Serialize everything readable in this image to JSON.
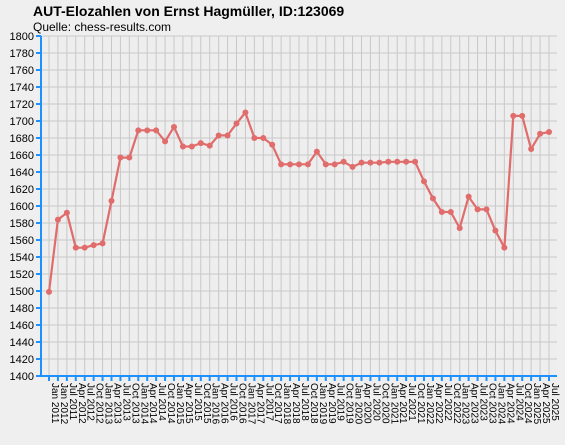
{
  "chart_data": {
    "type": "line",
    "title": "AUT-Elozahlen von Ernst Hagmüller, ID:123069",
    "subtitle": "Quelle: chess-results.com",
    "xlabel": "",
    "ylabel": "",
    "ylim": [
      1400,
      1800
    ],
    "ytick_step": 20,
    "grid": true,
    "colors": {
      "line": "#e06c6c",
      "axis": "#1e90ff",
      "grid": "#c8c8c8",
      "background": "#efefef"
    },
    "categories": [
      "Jan 2011",
      "Jan 2012",
      "Jul 2011",
      "Apr 2012",
      "Jul 2012",
      "Oct 2012",
      "Jan 2013",
      "Apr 2013",
      "Jul 2013",
      "Oct 2013",
      "Jan 2014",
      "Apr 2014",
      "Jul 2014",
      "Oct 2014",
      "Jan 2015",
      "Apr 2015",
      "Jul 2015",
      "Oct 2015",
      "Jan 2016",
      "Apr 2016",
      "Jul 2016",
      "Oct 2016",
      "Jan 2017",
      "Apr 2017",
      "Jul 2017",
      "Oct 2017",
      "Jan 2018",
      "Apr 2018",
      "Jul 2018",
      "Oct 2018",
      "Jan 2019",
      "Apr 2019",
      "Jul 2019",
      "Oct 2019",
      "Jan 2020",
      "Apr 2020",
      "Jul 2020",
      "Oct 2020",
      "Jan 2021",
      "Apr 2021",
      "Jul 2021",
      "Oct 2021",
      "Jan 2022",
      "Apr 2022",
      "Jul 2022",
      "Oct 2022",
      "Jan 2023",
      "Apr 2023",
      "Jul 2023",
      "Oct 2023",
      "Jan 2024",
      "Apr 2024",
      "Jul 2024",
      "Oct 2024",
      "Jan 2025",
      "Apr 2025",
      "Jul 2025"
    ],
    "series": [
      {
        "values": [
          1499,
          1584,
          1592,
          1551,
          1551,
          1554,
          1556,
          1606,
          1657,
          1657,
          1689,
          1689,
          1689,
          1676,
          1693,
          1670,
          1670,
          1674,
          1671,
          1683,
          1683,
          1697,
          1710,
          1680,
          1680,
          1672,
          1649,
          1649,
          1649,
          1649,
          1664,
          1649,
          1649,
          1652,
          1646,
          1651,
          1651,
          1651,
          1652,
          1652,
          1652,
          1652,
          1629,
          1609,
          1593,
          1593,
          1574,
          1611,
          1596,
          1596,
          1571,
          1551,
          1706,
          1706,
          1667,
          1685,
          1687
        ]
      }
    ]
  }
}
